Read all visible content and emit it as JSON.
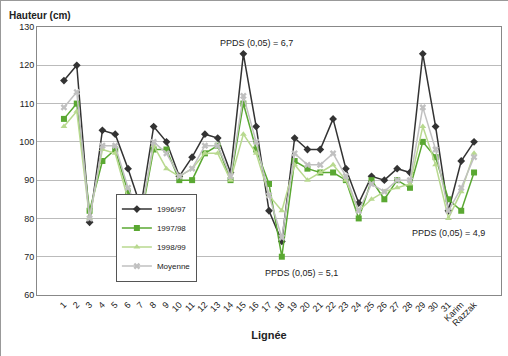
{
  "chart_data": {
    "type": "line",
    "y_label": "Hauteur (cm)",
    "x_label": "Lignée",
    "categories": [
      "1",
      "2",
      "3",
      "4",
      "5",
      "6",
      "7",
      "8",
      "9",
      "10",
      "11",
      "12",
      "13",
      "14",
      "15",
      "16",
      "17",
      "18",
      "19",
      "20",
      "21",
      "22",
      "23",
      "24",
      "25",
      "26",
      "27",
      "28",
      "29",
      "30",
      "31",
      "Karim",
      "Razzak"
    ],
    "series": [
      {
        "name": "1996/97",
        "color": "#333333",
        "marker": "diamond",
        "line_style": "solid",
        "values": [
          116,
          120,
          79,
          103,
          102,
          93,
          83,
          104,
          100,
          91,
          96,
          102,
          101,
          92,
          123,
          104,
          82,
          74,
          101,
          98,
          98,
          106,
          93,
          84,
          91,
          90,
          93,
          92,
          123,
          104,
          82,
          95,
          100
        ]
      },
      {
        "name": "1997/98",
        "color": "#5aa832",
        "marker": "square",
        "line_style": "solid",
        "values": [
          106,
          110,
          82,
          95,
          98,
          87,
          80,
          98,
          98,
          90,
          90,
          97,
          99,
          90,
          110,
          98,
          89,
          70,
          95,
          93,
          92,
          92,
          90,
          80,
          90,
          85,
          90,
          88,
          100,
          96,
          85,
          82,
          92
        ]
      },
      {
        "name": "1998/99",
        "color": "#b8d98f",
        "marker": "triangle",
        "line_style": "solid",
        "values": [
          104,
          108,
          80,
          98,
          97,
          85,
          81,
          99,
          93,
          91,
          93,
          97,
          97,
          90,
          102,
          97,
          86,
          82,
          94,
          90,
          92,
          94,
          90,
          82,
          85,
          87,
          88,
          89,
          104,
          94,
          80,
          87,
          97
        ]
      },
      {
        "name": "Moyenne",
        "color": "#c0c0c0",
        "marker": "x",
        "line_style": "solid",
        "values": [
          109,
          113,
          80,
          99,
          99,
          88,
          81,
          100,
          97,
          91,
          93,
          99,
          99,
          91,
          112,
          100,
          86,
          75,
          97,
          94,
          94,
          97,
          91,
          82,
          89,
          87,
          90,
          90,
          109,
          98,
          82,
          88,
          96
        ]
      }
    ],
    "ylim": [
      60,
      130
    ],
    "yticks": [
      60,
      70,
      80,
      90,
      100,
      110,
      120,
      130
    ],
    "grid": true,
    "legend": "lower left",
    "annotations": [
      "PPDS (0,05) = 6,7",
      "PPDS (0,05) = 4,9",
      "PPDS (0,05) = 5,1"
    ]
  }
}
